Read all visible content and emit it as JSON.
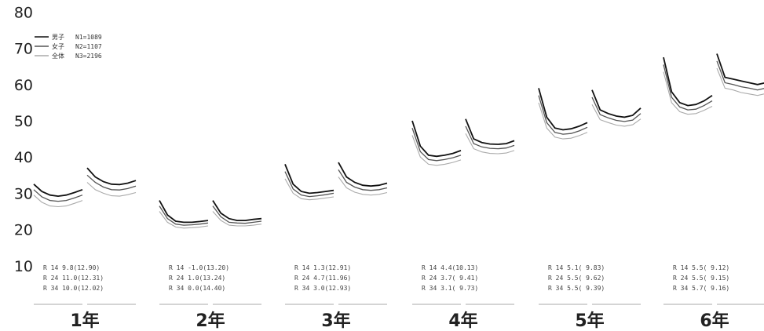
{
  "chart_data": {
    "type": "line",
    "title": "",
    "xlabel": "",
    "ylabel": "",
    "ylim": [
      0,
      80
    ],
    "yticks": [
      10,
      20,
      30,
      40,
      50,
      60,
      70,
      80
    ],
    "grid": false,
    "legend": {
      "placement": "top-left",
      "entries": [
        {
          "label": "男子",
          "n": "N1=1089",
          "color": "#111111"
        },
        {
          "label": "女子",
          "n": "N2=1107",
          "color": "#555555"
        },
        {
          "label": "全体",
          "n": "N3=2196",
          "color": "#aaaaaa"
        }
      ]
    },
    "grades": [
      {
        "label": "1年",
        "segments": [
          {
            "series": [
              {
                "name": "男子",
                "values": [
                  32.5,
                  30.5,
                  29.5,
                  29.2,
                  29.5,
                  30.2,
                  31
                ]
              },
              {
                "name": "女子",
                "values": [
                  31,
                  29,
                  28,
                  27.8,
                  28,
                  28.7,
                  29.5
                ]
              },
              {
                "name": "全体",
                "values": [
                  29.5,
                  27.5,
                  26.5,
                  26.3,
                  26.5,
                  27.2,
                  28
                ]
              }
            ]
          },
          {
            "series": [
              {
                "name": "男子",
                "values": [
                  37,
                  34.5,
                  33.2,
                  32.5,
                  32.4,
                  32.8,
                  33.5
                ]
              },
              {
                "name": "女子",
                "values": [
                  35,
                  33,
                  31.7,
                  31,
                  30.9,
                  31.3,
                  32
                ]
              },
              {
                "name": "全体",
                "values": [
                  33,
                  31,
                  30,
                  29.3,
                  29.2,
                  29.6,
                  30.2
                ]
              }
            ]
          }
        ],
        "stats": [
          "R 14    9.8(12.90)",
          "R 24   11.0(12.31)",
          "R 34   10.0(12.02)"
        ]
      },
      {
        "label": "2年",
        "segments": [
          {
            "series": [
              {
                "name": "男子",
                "values": [
                  28,
                  24,
                  22.3,
                  22,
                  22,
                  22.2,
                  22.5
                ]
              },
              {
                "name": "女子",
                "values": [
                  26.5,
                  23,
                  21.5,
                  21.2,
                  21.3,
                  21.5,
                  21.8
                ]
              },
              {
                "name": "全体",
                "values": [
                  25,
                  22,
                  20.7,
                  20.4,
                  20.5,
                  20.7,
                  21
                ]
              }
            ]
          },
          {
            "series": [
              {
                "name": "男子",
                "values": [
                  28,
                  24.5,
                  23,
                  22.5,
                  22.5,
                  22.8,
                  23
                ]
              },
              {
                "name": "女子",
                "values": [
                  26.5,
                  23.5,
                  22,
                  21.8,
                  21.7,
                  22,
                  22.3
                ]
              },
              {
                "name": "全体",
                "values": [
                  25,
                  22.5,
                  21.2,
                  21,
                  21,
                  21.2,
                  21.5
                ]
              }
            ]
          }
        ],
        "stats": [
          "R 14   -1.0(13.20)",
          "R 24    1.0(13.24)",
          "R 34    0.0(14.40)"
        ]
      },
      {
        "label": "3年",
        "segments": [
          {
            "series": [
              {
                "name": "男子",
                "values": [
                  38,
                  32.5,
                  30.5,
                  30,
                  30.2,
                  30.5,
                  30.8
                ]
              },
              {
                "name": "女子",
                "values": [
                  36,
                  31.2,
                  29.5,
                  29.1,
                  29.3,
                  29.6,
                  30
                ]
              },
              {
                "name": "全体",
                "values": [
                  34,
                  30,
                  28.5,
                  28.2,
                  28.4,
                  28.7,
                  29
                ]
              }
            ]
          },
          {
            "series": [
              {
                "name": "男子",
                "values": [
                  38.5,
                  34.5,
                  33,
                  32.2,
                  32,
                  32.2,
                  32.8
                ]
              },
              {
                "name": "女子",
                "values": [
                  36.5,
                  33,
                  31.7,
                  31,
                  30.8,
                  31,
                  31.5
                ]
              },
              {
                "name": "全体",
                "values": [
                  34.5,
                  31.5,
                  30.3,
                  29.7,
                  29.5,
                  29.7,
                  30.2
                ]
              }
            ]
          }
        ],
        "stats": [
          "R 14    1.3(12.91)",
          "R 24    4.7(11.96)",
          "R 34    3.0(12.93)"
        ]
      },
      {
        "label": "4年",
        "segments": [
          {
            "series": [
              {
                "name": "男子",
                "values": [
                  50,
                  43,
                  40.5,
                  40.2,
                  40.5,
                  41,
                  41.8
                ]
              },
              {
                "name": "女子",
                "values": [
                  48,
                  41.5,
                  39.3,
                  39,
                  39.3,
                  39.8,
                  40.5
                ]
              },
              {
                "name": "全体",
                "values": [
                  46,
                  40,
                  38,
                  37.7,
                  38,
                  38.5,
                  39.2
                ]
              }
            ]
          },
          {
            "series": [
              {
                "name": "男子",
                "values": [
                  50.5,
                  45,
                  44,
                  43.6,
                  43.5,
                  43.7,
                  44.5
                ]
              },
              {
                "name": "女子",
                "values": [
                  48.5,
                  43.7,
                  42.8,
                  42.4,
                  42.3,
                  42.5,
                  43.2
                ]
              },
              {
                "name": "全体",
                "values": [
                  46.5,
                  42.3,
                  41.4,
                  41,
                  40.9,
                  41.1,
                  41.8
                ]
              }
            ]
          }
        ],
        "stats": [
          "R 14    4.4(10.13)",
          "R 24    3.7( 9.41)",
          "R 34    3.1( 9.73)"
        ]
      },
      {
        "label": "5年",
        "segments": [
          {
            "series": [
              {
                "name": "男子",
                "values": [
                  59,
                  51,
                  48,
                  47.5,
                  47.8,
                  48.5,
                  49.5
                ]
              },
              {
                "name": "女子",
                "values": [
                  57,
                  49.5,
                  46.8,
                  46.3,
                  46.5,
                  47.2,
                  48.2
                ]
              },
              {
                "name": "全体",
                "values": [
                  55,
                  48,
                  45.5,
                  45,
                  45.2,
                  45.9,
                  46.8
                ]
              }
            ]
          },
          {
            "series": [
              {
                "name": "男子",
                "values": [
                  58.5,
                  53,
                  52,
                  51.3,
                  51,
                  51.5,
                  53.5
                ]
              },
              {
                "name": "女子",
                "values": [
                  56.5,
                  51.7,
                  50.8,
                  50.1,
                  49.8,
                  50.2,
                  52
                ]
              },
              {
                "name": "全体",
                "values": [
                  54.5,
                  50.3,
                  49.5,
                  48.8,
                  48.5,
                  48.9,
                  50.5
                ]
              }
            ]
          }
        ],
        "stats": [
          "R 14    5.1( 9.83)",
          "R 24    5.5( 9.62)",
          "R 34    5.5( 9.39)"
        ]
      },
      {
        "label": "6年",
        "segments": [
          {
            "series": [
              {
                "name": "男子",
                "values": [
                  67.5,
                  58,
                  55,
                  54.2,
                  54.5,
                  55.5,
                  57
                ]
              },
              {
                "name": "女子",
                "values": [
                  65.5,
                  56.5,
                  53.8,
                  53,
                  53.2,
                  54.2,
                  55.5
                ]
              },
              {
                "name": "全体",
                "values": [
                  63.5,
                  55,
                  52.5,
                  51.8,
                  52,
                  52.9,
                  54
                ]
              }
            ]
          },
          {
            "series": [
              {
                "name": "男子",
                "values": [
                  68.5,
                  62,
                  61.5,
                  61,
                  60.5,
                  60,
                  60.5
                ]
              },
              {
                "name": "女子",
                "values": [
                  66.5,
                  60.5,
                  60,
                  59.4,
                  59,
                  58.5,
                  59
                ]
              },
              {
                "name": "全体",
                "values": [
                  64.5,
                  59,
                  58.5,
                  57.8,
                  57.4,
                  57,
                  57.5
                ]
              }
            ]
          }
        ],
        "stats": [
          "R 14    5.5( 9.12)",
          "R 24    5.5( 9.15)",
          "R 34    5.7( 9.16)"
        ]
      }
    ]
  }
}
